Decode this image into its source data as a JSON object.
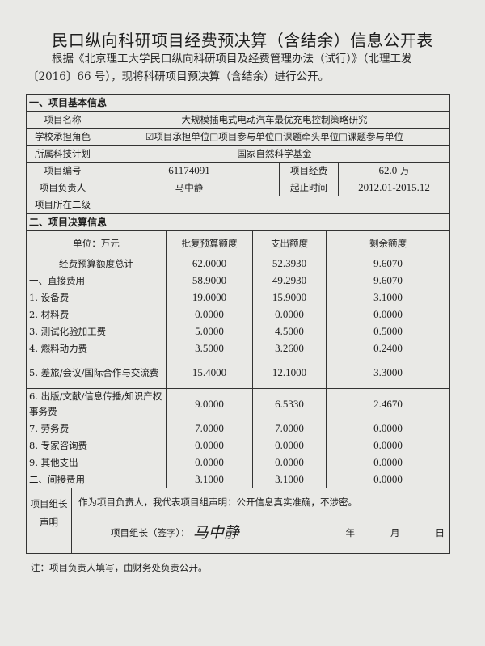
{
  "title": "民口纵向科研项目经费预决算（含结余）信息公开表",
  "intro": {
    "line1": "根据《北京理工大学民口纵向科研项目及经费管理办法（试行）》（北理工发",
    "line2": "〔2016〕66 号），现将科研项目预决算（含结余）进行公开。"
  },
  "basic": {
    "section": "一、项目基本信息",
    "name_label": "项目名称",
    "name_value": "大规模插电式电动汽车最优充电控制策略研究",
    "role_label": "学校承担角色",
    "role_value": "☑项目承担单位□项目参与单位□课题牵头单位□课题参与单位",
    "plan_label": "所属科技计划",
    "plan_value": "国家自然科学基金",
    "number_label": "项目编号",
    "number_value": "61174091",
    "funds_label": "项目经费",
    "funds_value": "62.0",
    "funds_unit": "万",
    "pi_label": "项目负责人",
    "pi_value": "马中静",
    "period_label": "起止时间",
    "period_value": "2012.01-2015.12",
    "dept_label": "项目所在二级",
    "dept_value": ""
  },
  "budget": {
    "section": "二、项目决算信息",
    "headers": [
      "单位：万元",
      "批复预算额度",
      "支出额度",
      "剩余额度"
    ],
    "rows": [
      {
        "item": "经费预算额度总计",
        "approved": "62.0000",
        "spent": "52.3930",
        "remaining": "9.6070"
      },
      {
        "item": "一、直接费用",
        "approved": "58.9000",
        "spent": "49.2930",
        "remaining": "9.6070"
      },
      {
        "item": "1. 设备费",
        "approved": "19.0000",
        "spent": "15.9000",
        "remaining": "3.1000"
      },
      {
        "item": "2. 材料费",
        "approved": "0.0000",
        "spent": "0.0000",
        "remaining": "0.0000"
      },
      {
        "item": "3. 测试化验加工费",
        "approved": "5.0000",
        "spent": "4.5000",
        "remaining": "0.5000"
      },
      {
        "item": "4. 燃料动力费",
        "approved": "3.5000",
        "spent": "3.2600",
        "remaining": "0.2400"
      },
      {
        "item": "5. 差旅/会议/国际合作与交流费",
        "approved": "15.4000",
        "spent": "12.1000",
        "remaining": "3.3000"
      },
      {
        "item": "6. 出版/文献/信息传播/知识产权事务费",
        "approved": "9.0000",
        "spent": "6.5330",
        "remaining": "2.4670"
      },
      {
        "item": "7. 劳务费",
        "approved": "7.0000",
        "spent": "7.0000",
        "remaining": "0.0000"
      },
      {
        "item": "8. 专家咨询费",
        "approved": "0.0000",
        "spent": "0.0000",
        "remaining": "0.0000"
      },
      {
        "item": "9. 其他支出",
        "approved": "0.0000",
        "spent": "0.0000",
        "remaining": "0.0000"
      },
      {
        "item": "二、间接费用",
        "approved": "3.1000",
        "spent": "3.1000",
        "remaining": "0.0000"
      }
    ]
  },
  "declaration": {
    "label": "项目组长声明",
    "text": "作为项目负责人，我代表项目组声明：公开信息真实准确，不涉密。",
    "sign_label": "项目组长（签字）：",
    "signature": "马中静",
    "year": "年",
    "month": "月",
    "day": "日"
  },
  "note": "注：项目负责人填写，由财务处负责公开。"
}
